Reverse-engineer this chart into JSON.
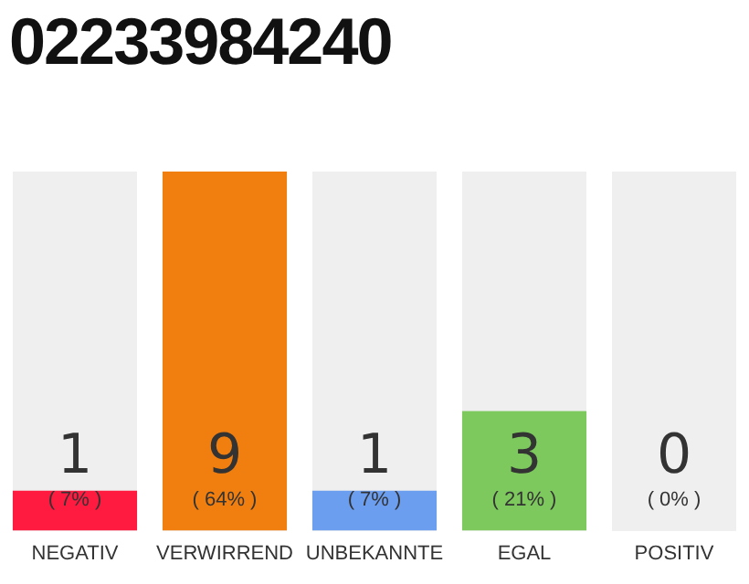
{
  "chart_data": {
    "type": "bar",
    "title": "02233984240",
    "categories": [
      "NEGATIV",
      "VERWIRREND",
      "UNBEKANNTE",
      "EGAL",
      "POSITIV"
    ],
    "values": [
      1,
      9,
      1,
      3,
      0
    ],
    "colors": [
      "#ff1a40",
      "#f17f0f",
      "#6c9ef0",
      "#7dc95e",
      "#bbbbbb"
    ],
    "ylim": [
      0,
      9
    ],
    "tick_labels": "x",
    "grid": false,
    "legend": false,
    "data_labels": true,
    "annotations": [
      "( 7% )",
      "( 64% )",
      "( 7% )",
      "( 21% )",
      "( 0% )"
    ]
  }
}
